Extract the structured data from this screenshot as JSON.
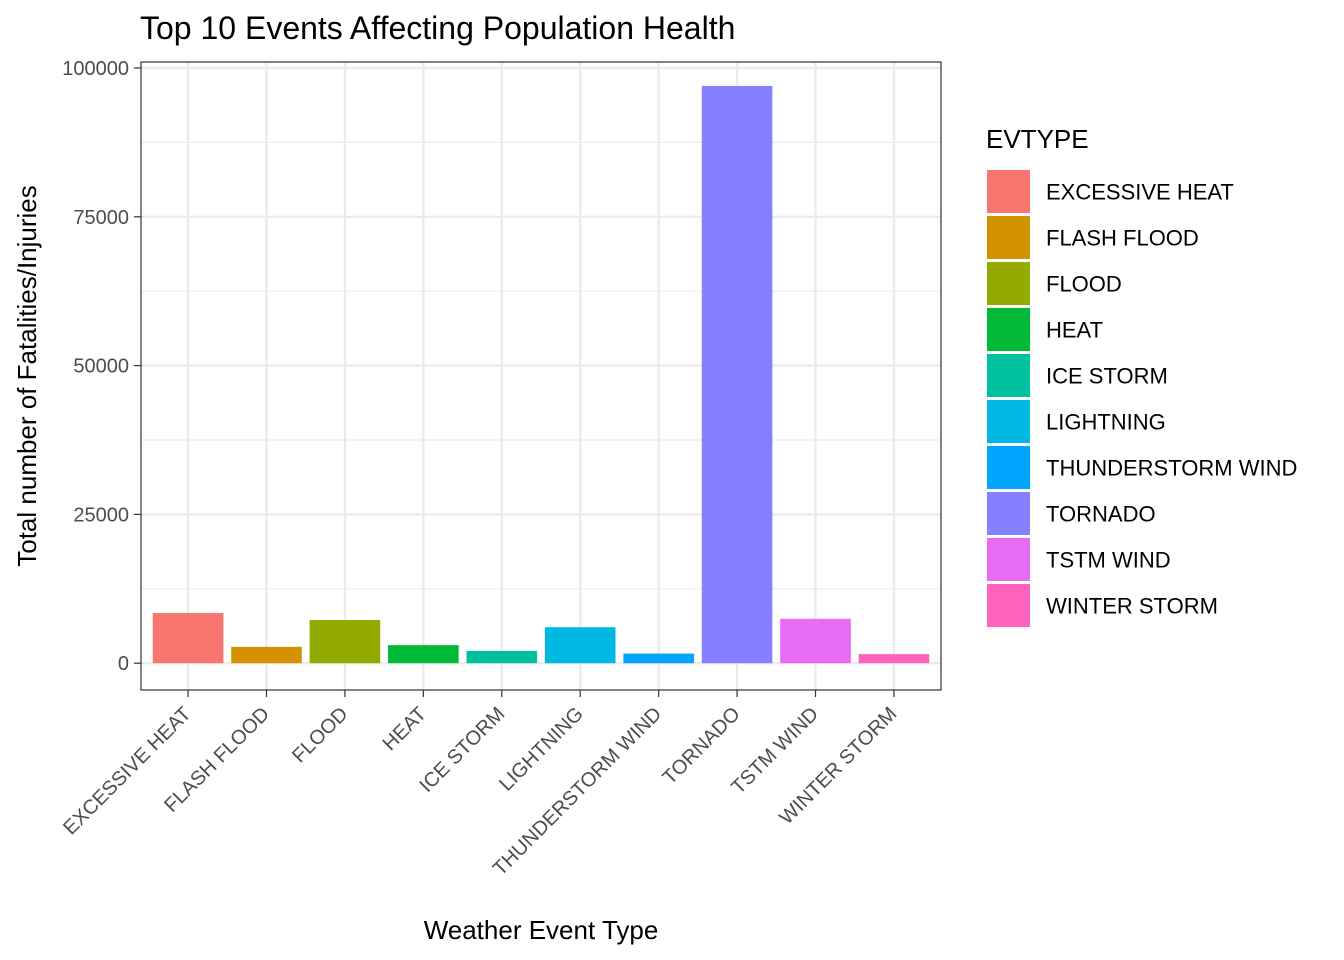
{
  "chart_data": {
    "type": "bar",
    "title": "Top 10 Events Affecting Population Health",
    "xlabel": "Weather Event Type",
    "ylabel": "Total number of Fatalities/Injuries",
    "categories": [
      "EXCESSIVE HEAT",
      "FLASH FLOOD",
      "FLOOD",
      "HEAT",
      "ICE STORM",
      "LIGHTNING",
      "THUNDERSTORM WIND",
      "TORNADO",
      "TSTM WIND",
      "WINTER STORM"
    ],
    "values": [
      8428,
      2755,
      7259,
      3037,
      2064,
      6046,
      1621,
      96979,
      7461,
      1527
    ],
    "colors": [
      "#F8766D",
      "#D39200",
      "#93AA00",
      "#00BA38",
      "#00C19F",
      "#00B9E3",
      "#00A5FF",
      "#8480FF",
      "#E76BF3",
      "#FF62BC"
    ],
    "ylim": [
      -4500,
      101000
    ],
    "yticks": [
      0,
      25000,
      50000,
      75000,
      100000
    ],
    "ytick_labels": [
      "0",
      "25000",
      "50000",
      "75000",
      "100000"
    ],
    "grid": true,
    "legend": {
      "title": "EVTYPE",
      "position": "right",
      "entries": [
        "EXCESSIVE HEAT",
        "FLASH FLOOD",
        "FLOOD",
        "HEAT",
        "ICE STORM",
        "LIGHTNING",
        "THUNDERSTORM WIND",
        "TORNADO",
        "TSTM WIND",
        "WINTER STORM"
      ]
    }
  }
}
